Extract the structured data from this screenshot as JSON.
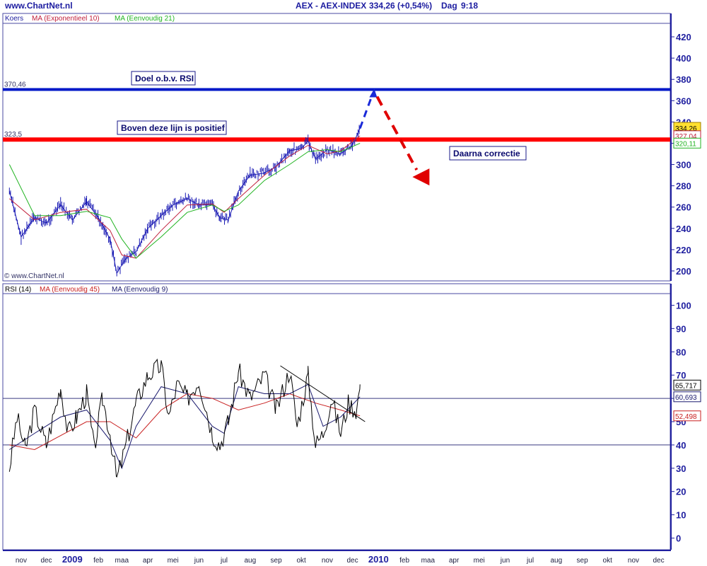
{
  "header": {
    "site": "www.ChartNet.nl",
    "instrument": "AEX - AEX-INDEX",
    "quote": "334,26 (+0,54%)",
    "period": "Dag",
    "time": "9:18"
  },
  "colors": {
    "price": "#1a1ab4",
    "ma_exp10": "#c0203c",
    "ma_simple21": "#22b422",
    "rsi": "#000000",
    "rsi_ma45": "#c82020",
    "rsi_ma9": "#1a1a6e",
    "level_blue": "#0018c8",
    "level_red": "#ff0000",
    "axis": "#2020a0"
  },
  "chart_data": [
    {
      "type": "line",
      "panel": "price",
      "legend": [
        "Koers",
        "MA (Exponentieel 10)",
        "MA (Eenvoudig 21)"
      ],
      "watermark": "© www.ChartNet.nl",
      "ylim": [
        190,
        430
      ],
      "y_ticks": [
        "420",
        "400",
        "380",
        "360",
        "340",
        "320",
        "300",
        "280",
        "260",
        "240",
        "220",
        "200"
      ],
      "x_ticks": [
        "nov",
        "dec",
        "2009",
        "feb",
        "maa",
        "apr",
        "mei",
        "jun",
        "jul",
        "aug",
        "sep",
        "okt",
        "nov",
        "dec",
        "2010",
        "feb",
        "maa",
        "apr",
        "mei",
        "jun",
        "jul",
        "aug",
        "sep",
        "okt",
        "nov",
        "dec"
      ],
      "series": [
        {
          "name": "Koers",
          "x": [
            "2008-11-01",
            "2008-11-15",
            "2008-12-01",
            "2008-12-15",
            "2009-01-01",
            "2009-01-15",
            "2009-02-01",
            "2009-02-15",
            "2009-03-01",
            "2009-03-09",
            "2009-03-20",
            "2009-04-01",
            "2009-04-15",
            "2009-05-01",
            "2009-05-15",
            "2009-06-01",
            "2009-06-15",
            "2009-07-01",
            "2009-07-10",
            "2009-07-20",
            "2009-08-01",
            "2009-08-15",
            "2009-09-01",
            "2009-09-15",
            "2009-10-01",
            "2009-10-15",
            "2009-10-23",
            "2009-11-01",
            "2009-11-15",
            "2009-12-01",
            "2009-12-15",
            "2009-12-24"
          ],
          "values": [
            275,
            232,
            250,
            245,
            262,
            248,
            265,
            250,
            230,
            198,
            212,
            218,
            240,
            252,
            262,
            268,
            262,
            262,
            250,
            248,
            275,
            290,
            292,
            298,
            313,
            315,
            322,
            305,
            314,
            310,
            318,
            334
          ]
        },
        {
          "name": "MA (Exponentieel 10)",
          "x": [
            "2008-11-01",
            "2008-12-01",
            "2009-01-01",
            "2009-02-01",
            "2009-03-01",
            "2009-03-15",
            "2009-04-01",
            "2009-05-01",
            "2009-06-01",
            "2009-07-01",
            "2009-07-15",
            "2009-08-01",
            "2009-09-01",
            "2009-10-01",
            "2009-10-23",
            "2009-11-15",
            "2009-12-01",
            "2009-12-24"
          ],
          "values": [
            268,
            248,
            255,
            258,
            238,
            215,
            212,
            238,
            262,
            263,
            255,
            268,
            290,
            308,
            318,
            310,
            313,
            327
          ]
        },
        {
          "name": "MA (Eenvoudig 21)",
          "x": [
            "2008-11-01",
            "2008-12-01",
            "2009-01-01",
            "2009-02-01",
            "2009-03-01",
            "2009-03-15",
            "2009-04-01",
            "2009-05-01",
            "2009-06-01",
            "2009-07-01",
            "2009-07-15",
            "2009-08-01",
            "2009-09-01",
            "2009-10-01",
            "2009-10-23",
            "2009-11-15",
            "2009-12-01",
            "2009-12-24"
          ],
          "values": [
            300,
            252,
            252,
            256,
            250,
            230,
            212,
            232,
            255,
            262,
            256,
            262,
            285,
            300,
            312,
            314,
            312,
            320
          ]
        }
      ],
      "levels": [
        {
          "value": 370.46,
          "label": "370,46"
        },
        {
          "value": 323.5,
          "label": "323,5"
        }
      ],
      "annotations": [
        "Doel o.b.v. RSI",
        "Boven deze lijn is positief",
        "Daarna correctie"
      ],
      "price_labels": [
        "334,26",
        "327,04",
        "320,11"
      ]
    },
    {
      "type": "line",
      "panel": "rsi",
      "legend": [
        "RSI (14)",
        "MA (Eenvoudig 45)",
        "MA (Eenvoudig 9)"
      ],
      "ylim": [
        -5,
        105
      ],
      "y_ticks": [
        "100",
        "90",
        "80",
        "70",
        "60",
        "50",
        "40",
        "30",
        "20",
        "10",
        "0"
      ],
      "x_ticks": [
        "nov",
        "dec",
        "2009",
        "feb",
        "maa",
        "apr",
        "mei",
        "jun",
        "jul",
        "aug",
        "sep",
        "okt",
        "nov",
        "dec",
        "2010",
        "feb",
        "maa",
        "apr",
        "mei",
        "jun",
        "jul",
        "aug",
        "sep",
        "okt",
        "nov",
        "dec"
      ],
      "series": [
        {
          "name": "RSI (14)",
          "x": [
            "2008-11-01",
            "2008-11-10",
            "2008-11-20",
            "2008-12-01",
            "2008-12-15",
            "2009-01-01",
            "2009-01-10",
            "2009-01-20",
            "2009-02-01",
            "2009-02-10",
            "2009-02-20",
            "2009-03-01",
            "2009-03-09",
            "2009-03-20",
            "2009-04-01",
            "2009-04-15",
            "2009-05-01",
            "2009-05-10",
            "2009-05-20",
            "2009-06-01",
            "2009-06-15",
            "2009-07-01",
            "2009-07-10",
            "2009-07-20",
            "2009-08-01",
            "2009-08-15",
            "2009-09-01",
            "2009-09-15",
            "2009-10-01",
            "2009-10-10",
            "2009-10-23",
            "2009-11-01",
            "2009-11-10",
            "2009-11-20",
            "2009-12-01",
            "2009-12-10",
            "2009-12-20",
            "2009-12-24"
          ],
          "values": [
            30,
            52,
            38,
            55,
            40,
            65,
            45,
            52,
            62,
            38,
            60,
            45,
            25,
            40,
            58,
            70,
            74,
            52,
            66,
            60,
            68,
            45,
            40,
            50,
            72,
            60,
            70,
            55,
            72,
            48,
            70,
            40,
            45,
            60,
            45,
            58,
            55,
            66
          ]
        },
        {
          "name": "MA (Eenvoudig 45)",
          "x": [
            "2008-11-01",
            "2008-12-01",
            "2009-01-01",
            "2009-02-01",
            "2009-03-01",
            "2009-04-01",
            "2009-05-01",
            "2009-06-01",
            "2009-07-01",
            "2009-08-01",
            "2009-09-01",
            "2009-10-01",
            "2009-11-01",
            "2009-12-01",
            "2009-12-24"
          ],
          "values": [
            40,
            38,
            44,
            50,
            50,
            43,
            55,
            62,
            60,
            55,
            58,
            62,
            58,
            55,
            52.5
          ]
        },
        {
          "name": "MA (Eenvoudig 9)",
          "x": [
            "2008-11-01",
            "2008-12-01",
            "2009-01-01",
            "2009-02-01",
            "2009-03-01",
            "2009-03-15",
            "2009-04-01",
            "2009-05-01",
            "2009-06-01",
            "2009-07-01",
            "2009-07-15",
            "2009-08-01",
            "2009-09-01",
            "2009-10-01",
            "2009-10-23",
            "2009-11-10",
            "2009-12-01",
            "2009-12-24"
          ],
          "values": [
            38,
            45,
            52,
            55,
            42,
            30,
            48,
            65,
            62,
            48,
            45,
            65,
            62,
            62,
            66,
            48,
            52,
            60.7
          ]
        }
      ],
      "levels": [
        {
          "value": 60
        },
        {
          "value": 40
        }
      ],
      "value_labels": [
        "65,717",
        "60,693",
        "52,498"
      ]
    }
  ]
}
